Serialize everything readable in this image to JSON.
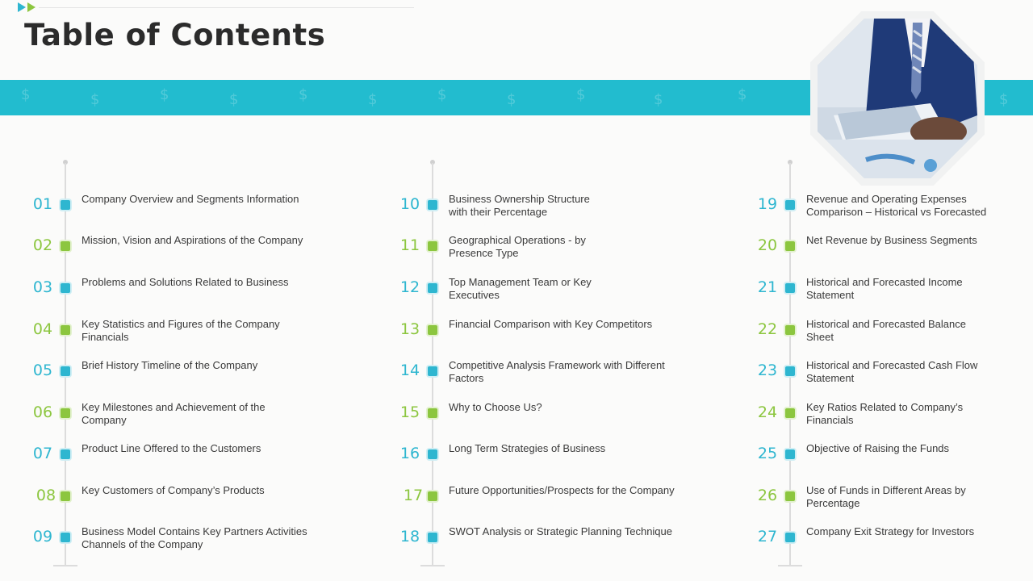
{
  "title": "Table of Contents",
  "colors": {
    "accent_teal": "#22bccf",
    "blue": "#2eb6d0",
    "green": "#8cc63f"
  },
  "icons": {
    "top_decoration": "double-play-arrow-icon",
    "band_pattern": "dollar-sign-icon"
  },
  "photo": {
    "subject": "businessman with tablet and documents"
  },
  "columns": [
    {
      "items": [
        {
          "num": "01",
          "text": "Company Overview  and Segments Information",
          "color": "blue"
        },
        {
          "num": "02",
          "text": "Mission, Vision and Aspirations of the Company",
          "color": "green"
        },
        {
          "num": "03",
          "text": "Problems and Solutions Related to Business",
          "color": "blue"
        },
        {
          "num": "04",
          "text": "Key Statistics and Figures of the Company\nFinancials",
          "color": "green"
        },
        {
          "num": "05",
          "text": "Brief History Timeline  of the Company",
          "color": "blue"
        },
        {
          "num": "06",
          "text": "Key Milestones and Achievement  of the\nCompany",
          "color": "green"
        },
        {
          "num": "07",
          "text": "Product Line Offered  to the Customers",
          "color": "blue"
        },
        {
          "num": "08",
          "text": " Key Customers of Company’s Products",
          "color": "green"
        },
        {
          "num": "09",
          "text": "Business Model Contains Key Partners Activities\nChannels of the Company",
          "color": "blue"
        }
      ]
    },
    {
      "items": [
        {
          "num": "10",
          "text": "Business Ownership  Structure\nwith their Percentage",
          "color": "blue"
        },
        {
          "num": "11",
          "text": "Geographical Operations  - by\nPresence Type",
          "color": "green"
        },
        {
          "num": "12",
          "text": "Top Management Team  or Key\nExecutives",
          "color": "blue"
        },
        {
          "num": "13",
          "text": "Financial Comparison  with Key Competitors",
          "color": "green"
        },
        {
          "num": "14",
          "text": "Competitive  Analysis Framework  with Different\nFactors",
          "color": "blue"
        },
        {
          "num": "15",
          "text": "Why to Choose Us?",
          "color": "green"
        },
        {
          "num": "16",
          "text": "Long Term  Strategies of Business",
          "color": "blue"
        },
        {
          "num": "17",
          "text": " Future Opportunities/Prospects for the Company",
          "color": "green"
        },
        {
          "num": "18",
          "text": "SWOT Analysis or Strategic Planning Technique",
          "color": "blue"
        }
      ]
    },
    {
      "items": [
        {
          "num": "19",
          "text": "Revenue  and Operating Expenses\nComparison – Historical vs Forecasted",
          "color": "blue"
        },
        {
          "num": "20",
          "text": "Net Revenue  by Business Segments",
          "color": "green"
        },
        {
          "num": "21",
          "text": "Historical and Forecasted Income\nStatement",
          "color": "blue"
        },
        {
          "num": "22",
          "text": "Historical and Forecasted Balance\nSheet",
          "color": "green"
        },
        {
          "num": "23",
          "text": "Historical and Forecasted Cash Flow\nStatement",
          "color": "blue"
        },
        {
          "num": "24",
          "text": "Key Ratios Related to Company’s\nFinancials",
          "color": "green"
        },
        {
          "num": "25",
          "text": "Objective  of Raising the Funds",
          "color": "blue"
        },
        {
          "num": "26",
          "text": "Use of Funds in Different  Areas by\nPercentage",
          "color": "green"
        },
        {
          "num": "27",
          "text": "Company Exit  Strategy for Investors",
          "color": "blue"
        }
      ]
    }
  ]
}
